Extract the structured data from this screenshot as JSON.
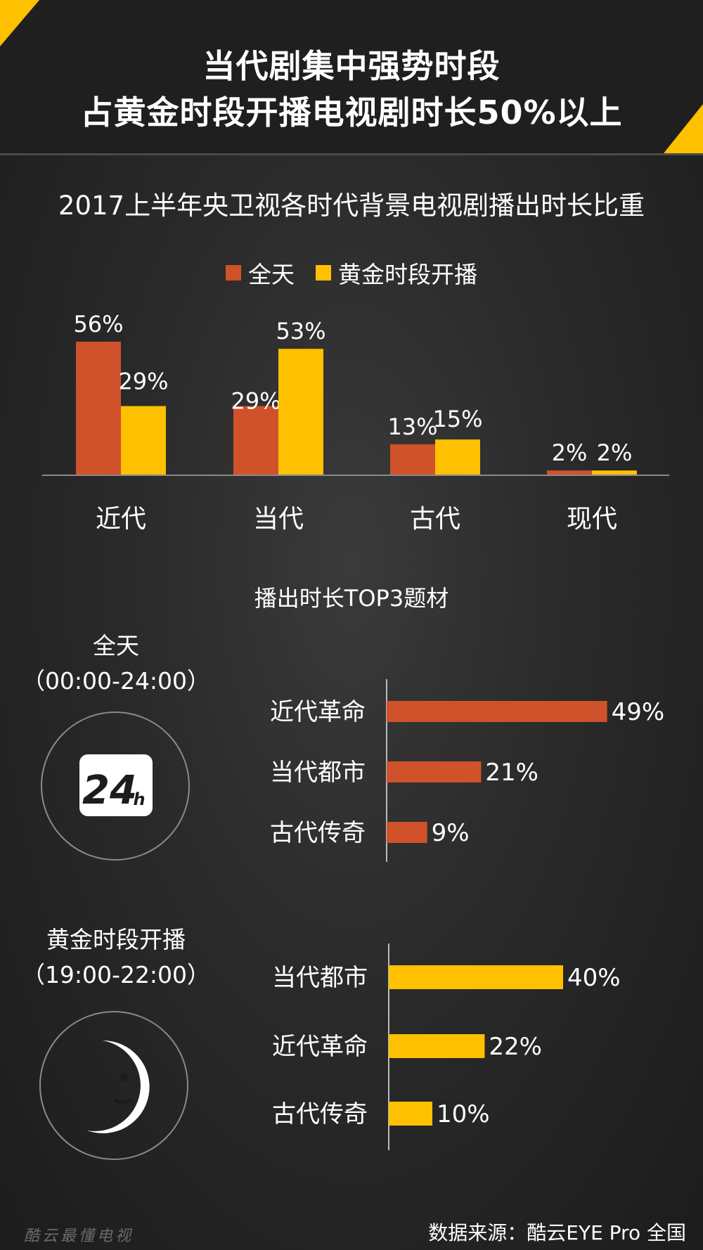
{
  "header": {
    "title_line1": "当代剧集中强势时段",
    "title_line2": "占黄金时段开播电视剧时长50%以上"
  },
  "colors": {
    "allday": "#d0522a",
    "prime": "#ffc000"
  },
  "chart_data": [
    {
      "type": "bar",
      "title": "2017上半年央卫视各时代背景电视剧播出时长比重",
      "categories": [
        "近代",
        "当代",
        "古代",
        "现代"
      ],
      "series": [
        {
          "name": "全天",
          "values": [
            56,
            29,
            13,
            2
          ],
          "labels": [
            "56%",
            "29%",
            "13%",
            "2%"
          ]
        },
        {
          "name": "黄金时段开播",
          "values": [
            29,
            53,
            15,
            2
          ],
          "labels": [
            "29%",
            "53%",
            "15%",
            "2%"
          ]
        }
      ],
      "ylim": [
        0,
        60
      ],
      "legend": "top"
    },
    {
      "type": "bar",
      "orientation": "horizontal",
      "title": "全天",
      "subtitle": "（00:00-24:00）",
      "categories": [
        "近代革命",
        "当代都市",
        "古代传奇"
      ],
      "values": [
        49,
        21,
        9
      ],
      "labels": [
        "49%",
        "21%",
        "9%"
      ],
      "xlim": [
        0,
        50
      ]
    },
    {
      "type": "bar",
      "orientation": "horizontal",
      "title": "黄金时段开播",
      "subtitle": "（19:00-22:00）",
      "categories": [
        "当代都市",
        "近代革命",
        "古代传奇"
      ],
      "values": [
        40,
        22,
        10
      ],
      "labels": [
        "40%",
        "22%",
        "10%"
      ],
      "xlim": [
        0,
        50
      ]
    }
  ],
  "top3": {
    "title": "播出时长TOP3题材"
  },
  "icons": {
    "allday": "24h-icon",
    "prime": "moon-icon",
    "allday_text": "24"
  },
  "footer": {
    "watermark": "酷云最懂电视",
    "source": "数据来源：酷云EYE Pro 全国"
  }
}
